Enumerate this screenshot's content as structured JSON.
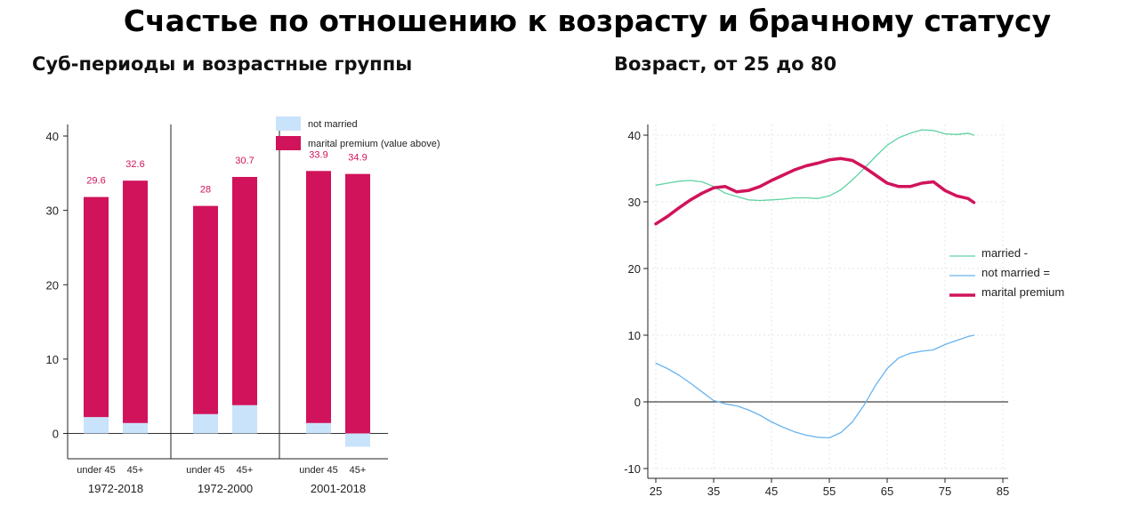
{
  "header": {
    "title": "Счастье по отношению к возрасту и брачному статусу",
    "left_subtitle": "Суб-периоды и возрастные группы",
    "right_subtitle": "Возраст, от 25 до 80"
  },
  "colors": {
    "premium": "#d1135b",
    "not_married_bar": "#c9e3fb",
    "married_line": "#5fd3a2",
    "not_married_line": "#6ab4ef"
  },
  "chart_data": [
    {
      "type": "bar",
      "ylim": [
        -2,
        41
      ],
      "yticks": [
        0,
        10,
        20,
        30,
        40
      ],
      "groups": [
        {
          "label": "1972-2018",
          "bars": [
            {
              "label": "under 45",
              "not_married": 2.2,
              "premium": 29.6
            },
            {
              "label": "45+",
              "not_married": 1.4,
              "premium": 32.6
            }
          ]
        },
        {
          "label": "1972-2000",
          "bars": [
            {
              "label": "under 45",
              "not_married": 2.6,
              "premium": 28
            },
            {
              "label": "45+",
              "not_married": 3.8,
              "premium": 30.7
            }
          ]
        },
        {
          "label": "2001-2018",
          "bars": [
            {
              "label": "under 45",
              "not_married": 1.4,
              "premium": 33.9
            },
            {
              "label": "45+",
              "not_married": -1.8,
              "premium": 34.9
            }
          ]
        }
      ],
      "legend": [
        "not married",
        "marital premium (value above)"
      ],
      "legend_position": "top-right"
    },
    {
      "type": "line",
      "xlim": [
        25,
        85
      ],
      "ylim": [
        -11,
        41
      ],
      "xticks": [
        25,
        35,
        45,
        55,
        65,
        75,
        85
      ],
      "yticks": [
        -10,
        0,
        10,
        20,
        30,
        40
      ],
      "grid": true,
      "legend_position": "right",
      "series": [
        {
          "name": "married -",
          "x": [
            25,
            27,
            29,
            31,
            33,
            35,
            37,
            39,
            41,
            43,
            45,
            47,
            49,
            51,
            53,
            55,
            57,
            59,
            61,
            63,
            65,
            67,
            69,
            71,
            73,
            75,
            77,
            79,
            80
          ],
          "y": [
            32.5,
            32.8,
            33.1,
            33.2,
            33.0,
            32.3,
            31.3,
            30.8,
            30.3,
            30.2,
            30.3,
            30.4,
            30.6,
            30.6,
            30.5,
            30.9,
            31.8,
            33.3,
            35.0,
            36.8,
            38.5,
            39.6,
            40.3,
            40.8,
            40.7,
            40.2,
            40.1,
            40.3,
            40.0
          ]
        },
        {
          "name": "not married =",
          "x": [
            25,
            27,
            29,
            31,
            33,
            35,
            37,
            39,
            41,
            43,
            45,
            47,
            49,
            51,
            53,
            55,
            57,
            59,
            61,
            63,
            65,
            67,
            69,
            71,
            73,
            75,
            77,
            79,
            80
          ],
          "y": [
            5.8,
            5.0,
            4.0,
            2.8,
            1.5,
            0.2,
            -0.3,
            -0.6,
            -1.2,
            -2.0,
            -3.0,
            -3.8,
            -4.5,
            -5.0,
            -5.3,
            -5.4,
            -4.6,
            -3.0,
            -0.5,
            2.5,
            5.0,
            6.6,
            7.3,
            7.6,
            7.8,
            8.6,
            9.2,
            9.8,
            10.0
          ]
        },
        {
          "name": "marital premium",
          "x": [
            25,
            27,
            29,
            31,
            33,
            35,
            37,
            39,
            41,
            43,
            45,
            47,
            49,
            51,
            53,
            55,
            57,
            59,
            61,
            63,
            65,
            67,
            69,
            71,
            73,
            75,
            77,
            79,
            80
          ],
          "y": [
            26.7,
            27.8,
            29.1,
            30.3,
            31.3,
            32.1,
            32.3,
            31.5,
            31.7,
            32.3,
            33.2,
            34.0,
            34.8,
            35.4,
            35.8,
            36.3,
            36.5,
            36.2,
            35.2,
            34.0,
            32.8,
            32.3,
            32.3,
            32.8,
            33.0,
            31.7,
            30.9,
            30.5,
            29.9
          ]
        }
      ]
    }
  ]
}
